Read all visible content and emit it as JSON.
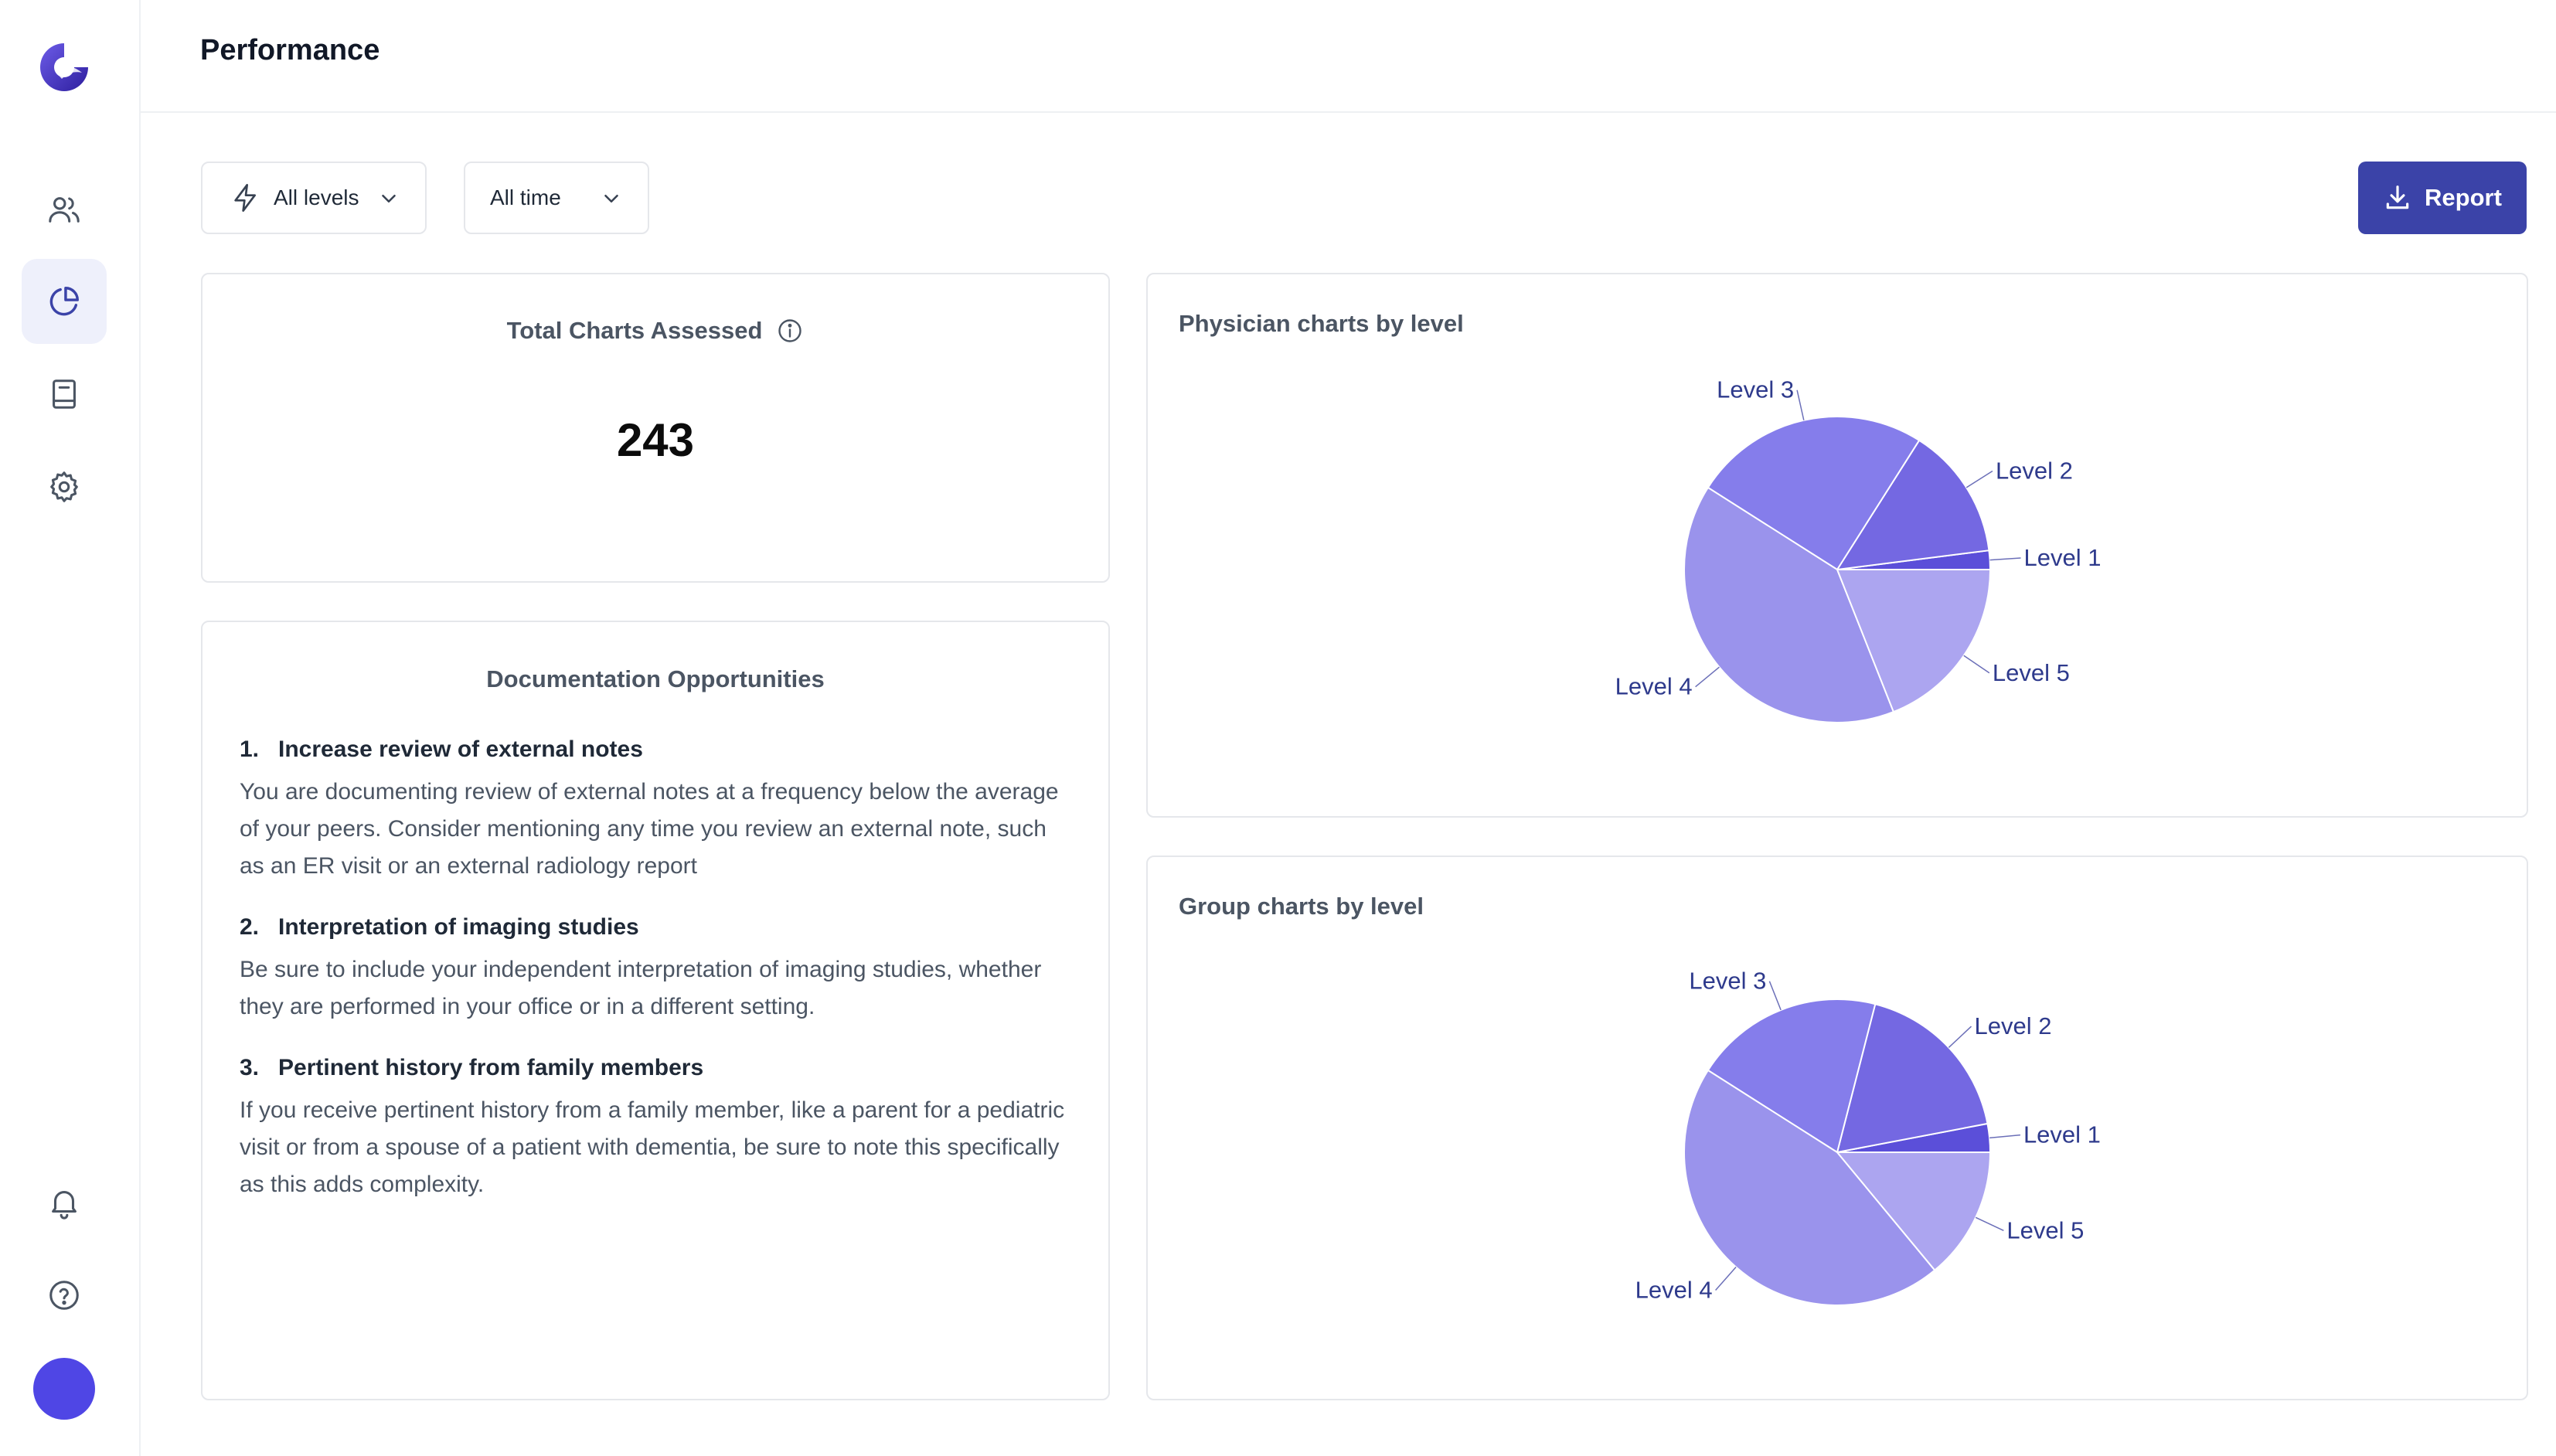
{
  "header": {
    "title": "Performance"
  },
  "sidebar": {
    "items": [
      {
        "name": "users-icon"
      },
      {
        "name": "pie-chart-icon",
        "active": true
      },
      {
        "name": "book-icon"
      },
      {
        "name": "gear-icon"
      },
      {
        "name": "bell-icon"
      },
      {
        "name": "help-icon"
      }
    ]
  },
  "filters": {
    "levels_label": "All levels",
    "time_label": "All time"
  },
  "actions": {
    "report_label": "Report"
  },
  "total": {
    "title": "Total Charts Assessed",
    "value": "243"
  },
  "docs": {
    "title": "Documentation Opportunities",
    "items": [
      {
        "num": "1.",
        "title": "Increase review of external notes",
        "body": "You are documenting review of external notes at a frequency below the average of your peers. Consider mentioning any time you review an external note, such as an ER visit or an external radiology report"
      },
      {
        "num": "2.",
        "title": "Interpretation of imaging studies",
        "body": "Be sure to include your independent interpretation of imaging studies, whether they are performed in your office or in a different setting."
      },
      {
        "num": "3.",
        "title": "Pertinent history from family members",
        "body": "If you receive pertinent history from a family member, like a parent for a pediatric visit or from a spouse of a patient with dementia, be sure to note this specifically as this adds complexity."
      }
    ]
  },
  "charts": {
    "physician_title": "Physician charts by level",
    "group_title": "Group charts by level"
  },
  "colors": {
    "accent": "#3b43a8",
    "level1": "#5b4fd9",
    "level2": "#7468e2",
    "level3": "#857deb",
    "level4": "#9a93ec",
    "level5": "#aca5f0"
  },
  "chart_data": [
    {
      "type": "pie",
      "title": "Physician charts by level",
      "labels": [
        "Level 1",
        "Level 2",
        "Level 3",
        "Level 4",
        "Level 5"
      ],
      "values": [
        2,
        14,
        25,
        40,
        19
      ]
    },
    {
      "type": "pie",
      "title": "Group charts by level",
      "labels": [
        "Level 1",
        "Level 2",
        "Level 3",
        "Level 4",
        "Level 5"
      ],
      "values": [
        3,
        18,
        20,
        45,
        14
      ]
    }
  ]
}
